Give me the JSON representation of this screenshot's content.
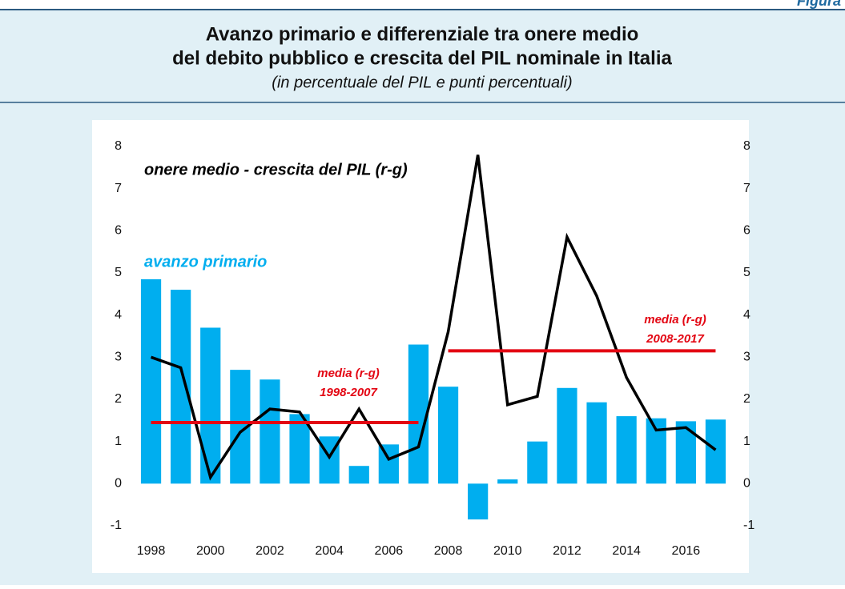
{
  "header": {
    "label": "Figura"
  },
  "chart_data": {
    "type": "bar_line",
    "title": [
      "Avanzo primario e differenziale tra onere medio",
      "del debito pubblico e crescita del PIL nominale in Italia"
    ],
    "subtitle": "(in percentuale del PIL e punti percentuali)",
    "categories": [
      "1998",
      null,
      "2000",
      null,
      "2002",
      null,
      "2004",
      null,
      "2006",
      null,
      "2008",
      null,
      "2010",
      null,
      "2012",
      null,
      "2014",
      null,
      "2016",
      null
    ],
    "ylim": [
      -1,
      8
    ],
    "yticks": [
      -1,
      0,
      1,
      2,
      3,
      4,
      5,
      6,
      7,
      8
    ],
    "y2lim": [
      -1,
      8
    ],
    "y2ticks": [
      -1,
      0,
      1,
      2,
      3,
      4,
      5,
      6,
      7,
      8
    ],
    "series": [
      {
        "name": "avanzo primario",
        "type": "bar",
        "color": "#00aeef",
        "values": [
          4.85,
          4.6,
          3.7,
          2.7,
          2.47,
          1.65,
          1.12,
          0.42,
          0.93,
          3.3,
          2.3,
          -0.85,
          0.1,
          1.0,
          2.27,
          1.93,
          1.6,
          1.55,
          1.48,
          1.52
        ]
      },
      {
        "name": "onere medio - crescita del PIL (r-g)",
        "type": "line",
        "color": "#000000",
        "axis": "y2",
        "values": [
          3.0,
          2.75,
          0.15,
          1.22,
          1.77,
          1.7,
          0.63,
          1.77,
          0.58,
          0.87,
          3.6,
          7.8,
          1.87,
          2.07,
          5.85,
          4.45,
          2.52,
          1.27,
          1.33,
          0.8
        ]
      },
      {
        "label": [
          "media (r-g)",
          "1998-2007"
        ],
        "type": "line",
        "color": "#e30613",
        "axis": "y2",
        "values": [
          1.45,
          1.45,
          1.45,
          1.45,
          1.45,
          1.45,
          1.45,
          1.45,
          1.45,
          1.45,
          null,
          null,
          null,
          null,
          null,
          null,
          null,
          null,
          null,
          null
        ]
      },
      {
        "label": [
          "media (r-g)",
          "2008-2017"
        ],
        "type": "line",
        "color": "#e30613",
        "axis": "y2",
        "values": [
          null,
          null,
          null,
          null,
          null,
          null,
          null,
          null,
          null,
          null,
          3.15,
          3.15,
          3.15,
          3.15,
          3.15,
          3.15,
          3.15,
          3.15,
          3.15,
          3.15
        ]
      }
    ]
  }
}
